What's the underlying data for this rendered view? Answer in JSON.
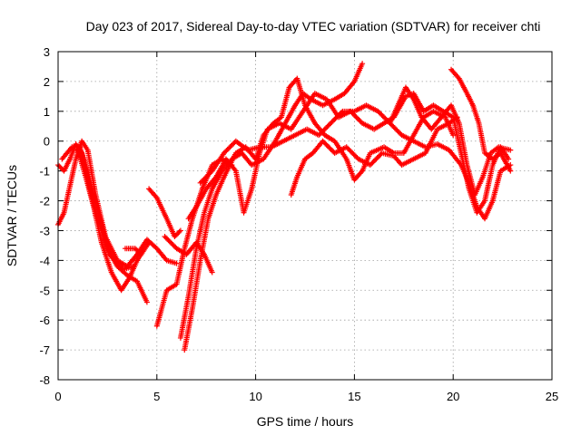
{
  "chart_data": {
    "type": "scatter",
    "title": "Day 023 of 2017, Sidereal Day-to-day VTEC variation (SDTVAR) for receiver chti",
    "xlabel": "GPS time / hours",
    "ylabel": "SDTVAR / TECUs",
    "xlim": [
      0,
      25
    ],
    "ylim": [
      -8,
      3
    ],
    "xticks": [
      0,
      5,
      10,
      15,
      20,
      25
    ],
    "yticks": [
      -8,
      -7,
      -6,
      -5,
      -4,
      -3,
      -2,
      -1,
      0,
      1,
      2,
      3
    ],
    "grid": true,
    "marker": "+",
    "color": "#ff0000",
    "series": [
      {
        "points": [
          [
            0,
            -0.8
          ],
          [
            0.3,
            -1.0
          ],
          [
            0.6,
            -0.6
          ],
          [
            0.9,
            -0.1
          ],
          [
            1.2,
            -0.4
          ],
          [
            1.6,
            -1.6
          ],
          [
            2.0,
            -2.6
          ],
          [
            2.5,
            -3.6
          ],
          [
            3.0,
            -4.2
          ],
          [
            3.5,
            -4.5
          ],
          [
            4.0,
            -4.7
          ],
          [
            4.5,
            -5.4
          ]
        ]
      },
      {
        "points": [
          [
            0,
            -2.8
          ],
          [
            0.3,
            -2.4
          ],
          [
            0.6,
            -1.5
          ],
          [
            0.9,
            -0.6
          ],
          [
            1.2,
            0.0
          ],
          [
            1.5,
            -0.3
          ],
          [
            1.9,
            -1.8
          ],
          [
            2.4,
            -3.2
          ],
          [
            3.0,
            -4.0
          ],
          [
            3.5,
            -4.2
          ],
          [
            4.0,
            -3.8
          ],
          [
            4.5,
            -3.3
          ],
          [
            5.0,
            -3.6
          ],
          [
            5.5,
            -4.0
          ],
          [
            6.0,
            -4.1
          ]
        ]
      },
      {
        "points": [
          [
            1.0,
            -0.3
          ],
          [
            1.4,
            -1.2
          ],
          [
            1.8,
            -2.2
          ],
          [
            2.2,
            -3.4
          ],
          [
            2.7,
            -4.4
          ],
          [
            3.2,
            -5.0
          ],
          [
            3.6,
            -4.6
          ],
          [
            4.0,
            -4.0
          ],
          [
            4.6,
            -3.4
          ]
        ]
      },
      {
        "points": [
          [
            0.2,
            -0.6
          ],
          [
            0.7,
            -0.2
          ],
          [
            1.1,
            -0.2
          ],
          [
            1.5,
            -1.0
          ],
          [
            2.0,
            -2.3
          ],
          [
            2.6,
            -3.8
          ],
          [
            3.3,
            -4.3
          ],
          [
            3.8,
            -4.2
          ]
        ]
      },
      {
        "points": [
          [
            3.4,
            -3.6
          ],
          [
            3.9,
            -3.6
          ],
          [
            4.2,
            -3.8
          ]
        ]
      },
      {
        "points": [
          [
            4.6,
            -1.6
          ],
          [
            5.0,
            -1.9
          ],
          [
            5.5,
            -2.6
          ],
          [
            5.9,
            -3.2
          ],
          [
            6.2,
            -3.0
          ]
        ]
      },
      {
        "points": [
          [
            5.0,
            -6.2
          ],
          [
            5.5,
            -5.0
          ],
          [
            6.0,
            -4.8
          ],
          [
            6.4,
            -3.6
          ],
          [
            6.8,
            -2.6
          ],
          [
            7.3,
            -1.6
          ],
          [
            7.8,
            -0.8
          ],
          [
            8.3,
            -0.6
          ],
          [
            8.8,
            -0.8
          ]
        ]
      },
      {
        "points": [
          [
            6.2,
            -6.6
          ],
          [
            6.6,
            -5.2
          ],
          [
            7.0,
            -3.6
          ],
          [
            7.4,
            -2.4
          ],
          [
            7.8,
            -1.6
          ],
          [
            8.3,
            -1.0
          ],
          [
            8.8,
            -0.6
          ],
          [
            9.3,
            -0.4
          ],
          [
            9.8,
            -0.8
          ],
          [
            10.4,
            -0.6
          ],
          [
            11.0,
            0.0
          ],
          [
            11.5,
            0.6
          ],
          [
            12.0,
            1.2
          ],
          [
            12.4,
            1.6
          ],
          [
            12.8,
            1.4
          ],
          [
            13.4,
            1.2
          ],
          [
            14.0,
            1.4
          ],
          [
            14.5,
            1.6
          ],
          [
            15.0,
            2.0
          ],
          [
            15.4,
            2.6
          ]
        ]
      },
      {
        "points": [
          [
            6.4,
            -7.0
          ],
          [
            6.8,
            -5.6
          ],
          [
            7.2,
            -4.0
          ],
          [
            7.6,
            -2.6
          ],
          [
            8.0,
            -1.8
          ],
          [
            8.4,
            -1.2
          ],
          [
            9.0,
            -0.4
          ],
          [
            9.5,
            -0.2
          ],
          [
            10.0,
            -0.6
          ],
          [
            10.4,
            0.2
          ],
          [
            10.9,
            0.6
          ],
          [
            11.3,
            0.8
          ],
          [
            11.7,
            1.8
          ],
          [
            12.1,
            2.1
          ],
          [
            12.5,
            1.2
          ],
          [
            13.0,
            0.6
          ],
          [
            13.5,
            0.2
          ],
          [
            14.0,
            0.0
          ],
          [
            14.6,
            -0.6
          ],
          [
            15.0,
            -1.3
          ],
          [
            15.4,
            -1.0
          ],
          [
            15.8,
            -0.4
          ],
          [
            16.5,
            -0.2
          ],
          [
            17.0,
            -0.4
          ],
          [
            17.5,
            -0.4
          ],
          [
            18.0,
            0.2
          ],
          [
            18.5,
            0.8
          ],
          [
            19.0,
            1.0
          ],
          [
            19.6,
            0.8
          ],
          [
            20.0,
            0.2
          ]
        ]
      },
      {
        "points": [
          [
            5.4,
            -3.2
          ],
          [
            6.0,
            -3.6
          ],
          [
            6.5,
            -3.8
          ],
          [
            7.0,
            -3.4
          ],
          [
            7.4,
            -3.8
          ],
          [
            7.8,
            -4.4
          ]
        ]
      },
      {
        "points": [
          [
            6.6,
            -2.6
          ],
          [
            7.0,
            -2.2
          ],
          [
            7.5,
            -1.6
          ],
          [
            8.0,
            -1.2
          ],
          [
            8.5,
            -0.6
          ],
          [
            9.0,
            -1.0
          ],
          [
            9.4,
            -2.4
          ],
          [
            9.8,
            -1.6
          ],
          [
            10.2,
            -0.4
          ],
          [
            10.6,
            0.4
          ],
          [
            11.2,
            0.6
          ],
          [
            11.8,
            0.4
          ],
          [
            12.4,
            1.0
          ],
          [
            13.0,
            1.6
          ],
          [
            13.6,
            1.4
          ],
          [
            14.2,
            0.8
          ],
          [
            14.8,
            1.0
          ],
          [
            15.4,
            0.6
          ],
          [
            16.0,
            0.4
          ],
          [
            16.5,
            0.6
          ],
          [
            17.0,
            0.8
          ],
          [
            17.6,
            1.5
          ],
          [
            18.0,
            1.6
          ],
          [
            18.5,
            1.0
          ],
          [
            19.0,
            1.2
          ],
          [
            19.5,
            1.0
          ],
          [
            20.0,
            0.8
          ],
          [
            20.4,
            -0.4
          ],
          [
            20.8,
            -1.6
          ],
          [
            21.2,
            -2.4
          ],
          [
            21.6,
            -2.0
          ],
          [
            22.0,
            -0.8
          ],
          [
            22.4,
            -0.2
          ],
          [
            22.8,
            -0.6
          ]
        ]
      },
      {
        "points": [
          [
            7.2,
            -1.4
          ],
          [
            7.8,
            -1.0
          ],
          [
            8.4,
            -0.4
          ],
          [
            9.0,
            0.0
          ],
          [
            9.6,
            -0.3
          ],
          [
            10.2,
            -0.2
          ],
          [
            10.8,
            -0.2
          ],
          [
            11.4,
            0.0
          ],
          [
            12.0,
            0.2
          ],
          [
            12.6,
            0.4
          ],
          [
            13.2,
            0.2
          ],
          [
            13.8,
            0.6
          ],
          [
            14.4,
            1.0
          ],
          [
            15.0,
            1.0
          ],
          [
            15.6,
            1.2
          ],
          [
            16.2,
            1.0
          ],
          [
            16.8,
            0.6
          ],
          [
            17.4,
            0.2
          ],
          [
            18.0,
            0.0
          ],
          [
            18.6,
            -0.2
          ],
          [
            19.2,
            -0.1
          ],
          [
            19.8,
            -0.3
          ],
          [
            20.4,
            -0.8
          ],
          [
            20.8,
            -1.4
          ],
          [
            21.2,
            -2.2
          ],
          [
            21.6,
            -2.6
          ],
          [
            22.0,
            -2.0
          ],
          [
            22.4,
            -1.0
          ],
          [
            22.9,
            -0.8
          ]
        ]
      },
      {
        "points": [
          [
            11.8,
            -1.8
          ],
          [
            12.1,
            -1.2
          ],
          [
            12.5,
            -0.6
          ],
          [
            12.9,
            -0.4
          ],
          [
            13.4,
            0.0
          ],
          [
            14.0,
            -0.4
          ],
          [
            14.6,
            -0.2
          ],
          [
            15.2,
            -0.6
          ],
          [
            15.8,
            -0.8
          ],
          [
            16.4,
            -0.4
          ],
          [
            17.0,
            -0.5
          ],
          [
            17.4,
            -0.8
          ],
          [
            18.0,
            -0.6
          ],
          [
            18.6,
            -0.4
          ],
          [
            19.2,
            0.4
          ],
          [
            19.8,
            0.6
          ],
          [
            20.2,
            0.8
          ]
        ]
      },
      {
        "points": [
          [
            16.8,
            0.6
          ],
          [
            17.2,
            1.2
          ],
          [
            17.6,
            1.8
          ],
          [
            18.0,
            1.4
          ],
          [
            18.4,
            0.8
          ],
          [
            18.9,
            0.4
          ],
          [
            19.4,
            0.8
          ],
          [
            19.9,
            1.2
          ],
          [
            20.3,
            0.6
          ],
          [
            20.7,
            -0.8
          ],
          [
            21.1,
            -1.8
          ],
          [
            21.5,
            -1.2
          ],
          [
            21.9,
            -0.4
          ],
          [
            22.3,
            -0.2
          ],
          [
            22.9,
            -0.3
          ]
        ]
      },
      {
        "points": [
          [
            19.9,
            2.4
          ],
          [
            20.3,
            2.1
          ],
          [
            20.7,
            1.6
          ],
          [
            21.0,
            1.2
          ],
          [
            21.3,
            0.6
          ],
          [
            21.6,
            -0.4
          ],
          [
            22.0,
            -0.6
          ],
          [
            22.4,
            -0.4
          ],
          [
            22.9,
            -1.0
          ]
        ]
      }
    ]
  }
}
